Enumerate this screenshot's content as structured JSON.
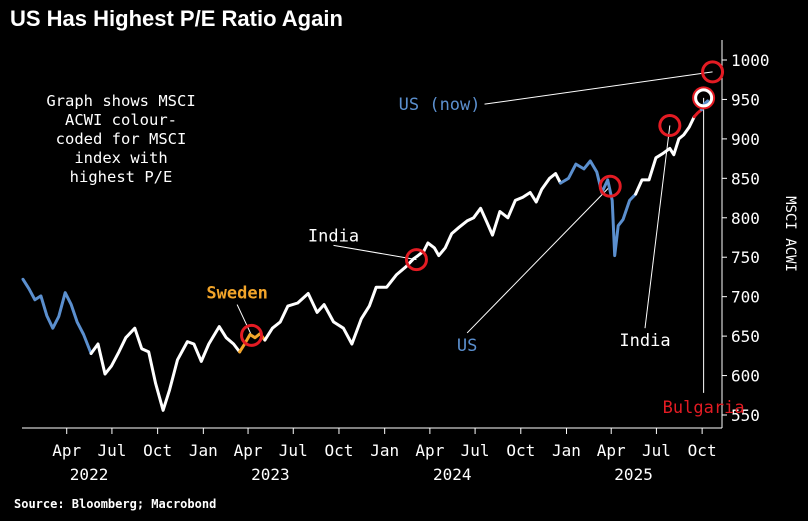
{
  "title": "US Has Highest P/E Ratio Again",
  "source": "Source: Bloomberg; Macrobond",
  "note": "Graph shows MSCI\nACWI colour-\ncoded for MSCI\nindex with\nhighest P/E",
  "colors": {
    "background": "#000000",
    "white": "#ffffff",
    "us": "#5b8fce",
    "sweden": "#f3a52a",
    "india": "#ffffff",
    "bulgaria": "#e31b23",
    "circle": "#e31b23"
  },
  "chart_data": {
    "type": "line",
    "ylabel": "MSCI ACWI",
    "ylim": [
      540,
      1010
    ],
    "yticks": [
      550,
      600,
      650,
      700,
      750,
      800,
      850,
      900,
      950,
      1000
    ],
    "xlim": [
      "2022-01-01",
      "2025-11-10"
    ],
    "xticks": [
      {
        "date": "2022-04-01",
        "label": "Apr"
      },
      {
        "date": "2022-07-01",
        "label": "Jul"
      },
      {
        "date": "2022-10-01",
        "label": "Oct"
      },
      {
        "date": "2023-01-01",
        "label": "Jan"
      },
      {
        "date": "2023-04-01",
        "label": "Apr"
      },
      {
        "date": "2023-07-01",
        "label": "Jul"
      },
      {
        "date": "2023-10-01",
        "label": "Oct"
      },
      {
        "date": "2024-01-01",
        "label": "Jan"
      },
      {
        "date": "2024-04-01",
        "label": "Apr"
      },
      {
        "date": "2024-07-01",
        "label": "Jul"
      },
      {
        "date": "2024-10-01",
        "label": "Oct"
      },
      {
        "date": "2025-01-01",
        "label": "Jan"
      },
      {
        "date": "2025-04-01",
        "label": "Apr"
      },
      {
        "date": "2025-07-01",
        "label": "Jul"
      },
      {
        "date": "2025-10-01",
        "label": "Oct"
      }
    ],
    "year_labels": [
      {
        "date": "2022-05-16",
        "label": "2022"
      },
      {
        "date": "2023-05-16",
        "label": "2023"
      },
      {
        "date": "2024-05-16",
        "label": "2024"
      },
      {
        "date": "2025-05-16",
        "label": "2025"
      }
    ],
    "series": [
      {
        "name": "US",
        "points": [
          [
            "2022-01-03",
            722
          ],
          [
            "2022-01-15",
            710
          ],
          [
            "2022-01-27",
            696
          ],
          [
            "2022-02-08",
            701
          ],
          [
            "2022-02-20",
            676
          ],
          [
            "2022-03-04",
            660
          ],
          [
            "2022-03-16",
            675
          ],
          [
            "2022-03-29",
            705
          ],
          [
            "2022-04-10",
            690
          ],
          [
            "2022-04-22",
            668
          ],
          [
            "2022-05-05",
            652
          ],
          [
            "2022-05-20",
            628
          ]
        ]
      },
      {
        "name": "",
        "points": [
          [
            "2022-05-20",
            628
          ],
          [
            "2022-06-03",
            640
          ],
          [
            "2022-06-17",
            602
          ],
          [
            "2022-06-30",
            612
          ],
          [
            "2022-07-15",
            630
          ],
          [
            "2022-07-29",
            648
          ],
          [
            "2022-08-16",
            660
          ],
          [
            "2022-08-30",
            634
          ],
          [
            "2022-09-13",
            630
          ],
          [
            "2022-09-27",
            590
          ],
          [
            "2022-10-12",
            556
          ],
          [
            "2022-10-25",
            582
          ],
          [
            "2022-11-10",
            620
          ],
          [
            "2022-11-30",
            643
          ],
          [
            "2022-12-13",
            640
          ],
          [
            "2022-12-28",
            618
          ],
          [
            "2023-01-12",
            640
          ],
          [
            "2023-02-02",
            662
          ],
          [
            "2023-02-16",
            648
          ],
          [
            "2023-03-03",
            640
          ],
          [
            "2023-03-15",
            630
          ]
        ]
      },
      {
        "name": "Sweden",
        "points": [
          [
            "2023-03-15",
            630
          ],
          [
            "2023-03-25",
            640
          ],
          [
            "2023-04-05",
            652
          ],
          [
            "2023-04-15",
            648
          ],
          [
            "2023-04-25",
            653
          ],
          [
            "2023-05-05",
            645
          ]
        ]
      },
      {
        "name": "",
        "points": [
          [
            "2023-05-05",
            645
          ],
          [
            "2023-05-20",
            660
          ],
          [
            "2023-06-05",
            668
          ],
          [
            "2023-06-20",
            688
          ],
          [
            "2023-07-10",
            692
          ],
          [
            "2023-07-31",
            704
          ],
          [
            "2023-08-18",
            680
          ],
          [
            "2023-09-01",
            690
          ],
          [
            "2023-09-20",
            668
          ],
          [
            "2023-10-10",
            660
          ],
          [
            "2023-10-27",
            640
          ],
          [
            "2023-11-15",
            672
          ],
          [
            "2023-12-01",
            688
          ],
          [
            "2023-12-15",
            712
          ],
          [
            "2024-01-05",
            712
          ],
          [
            "2024-01-25",
            728
          ],
          [
            "2024-02-13",
            738
          ],
          [
            "2024-02-28",
            748
          ]
        ]
      },
      {
        "name": "India",
        "points": [
          [
            "2024-02-28",
            748
          ],
          [
            "2024-03-08",
            752
          ],
          [
            "2024-03-20",
            758
          ]
        ]
      },
      {
        "name": "",
        "points": [
          [
            "2024-03-20",
            758
          ],
          [
            "2024-03-28",
            768
          ],
          [
            "2024-04-10",
            762
          ],
          [
            "2024-04-19",
            752
          ],
          [
            "2024-05-02",
            762
          ],
          [
            "2024-05-15",
            780
          ],
          [
            "2024-05-30",
            788
          ],
          [
            "2024-06-15",
            796
          ],
          [
            "2024-06-28",
            800
          ],
          [
            "2024-07-12",
            812
          ],
          [
            "2024-07-25",
            794
          ],
          [
            "2024-08-05",
            778
          ],
          [
            "2024-08-20",
            808
          ],
          [
            "2024-09-05",
            800
          ],
          [
            "2024-09-20",
            822
          ],
          [
            "2024-10-05",
            826
          ],
          [
            "2024-10-20",
            832
          ],
          [
            "2024-11-01",
            820
          ],
          [
            "2024-11-12",
            836
          ],
          [
            "2024-11-28",
            850
          ],
          [
            "2024-12-10",
            856
          ],
          [
            "2024-12-20",
            844
          ]
        ]
      },
      {
        "name": "US",
        "points": [
          [
            "2024-12-20",
            844
          ],
          [
            "2025-01-05",
            850
          ],
          [
            "2025-01-20",
            868
          ],
          [
            "2025-02-05",
            862
          ],
          [
            "2025-02-18",
            872
          ],
          [
            "2025-03-03",
            858
          ],
          [
            "2025-03-13",
            832
          ],
          [
            "2025-03-25",
            848
          ],
          [
            "2025-04-03",
            822
          ],
          [
            "2025-04-08",
            752
          ],
          [
            "2025-04-15",
            790
          ],
          [
            "2025-04-25",
            798
          ],
          [
            "2025-05-08",
            822
          ],
          [
            "2025-05-20",
            830
          ]
        ]
      },
      {
        "name": "",
        "points": [
          [
            "2025-05-20",
            830
          ],
          [
            "2025-06-02",
            848
          ],
          [
            "2025-06-16",
            848
          ],
          [
            "2025-06-30",
            876
          ],
          [
            "2025-07-15",
            882
          ],
          [
            "2025-07-28",
            888
          ],
          [
            "2025-08-05",
            880
          ],
          [
            "2025-08-15",
            900
          ],
          [
            "2025-08-25",
            905
          ],
          [
            "2025-09-05",
            915
          ],
          [
            "2025-09-15",
            928
          ]
        ]
      },
      {
        "name": "Bulgaria",
        "points": [
          [
            "2025-09-15",
            928
          ],
          [
            "2025-09-22",
            933
          ],
          [
            "2025-09-30",
            937
          ]
        ]
      },
      {
        "name": "US",
        "points": [
          [
            "2025-09-30",
            937
          ],
          [
            "2025-10-05",
            944
          ],
          [
            "2025-10-12",
            948
          ]
        ]
      }
    ],
    "markers": [
      {
        "date": "2023-04-08",
        "value": 651
      },
      {
        "date": "2024-03-05",
        "value": 747
      },
      {
        "date": "2025-03-30",
        "value": 840
      },
      {
        "date": "2025-07-28",
        "value": 917
      },
      {
        "date": "2025-10-04",
        "value": 952
      },
      {
        "date": "2025-10-22",
        "value": 985
      }
    ],
    "annotations": [
      {
        "label": "Sweden",
        "color": "#f3a52a",
        "at": [
          "2023-03-10",
          690
        ],
        "point": [
          "2023-04-08",
          651
        ]
      },
      {
        "label": "India",
        "color": "#ffffff",
        "at": [
          "2023-09-20",
          765
        ],
        "point": [
          "2024-03-05",
          747
        ]
      },
      {
        "label": "US",
        "color": "#5b8fce",
        "at": [
          "2024-06-15",
          654
        ],
        "point": [
          "2025-03-30",
          840
        ]
      },
      {
        "label": "India",
        "color": "#ffffff",
        "at": [
          "2025-06-08",
          660
        ],
        "point": [
          "2025-07-28",
          917
        ]
      },
      {
        "label": "Bulgaria",
        "color": "#e31b23",
        "at": [
          "2025-10-04",
          578
        ],
        "point": [
          "2025-10-04",
          952
        ]
      },
      {
        "label": "US (now)",
        "color": "#5b8fce",
        "at": [
          "2024-07-20",
          944
        ],
        "point": [
          "2025-10-22",
          985
        ]
      }
    ]
  }
}
